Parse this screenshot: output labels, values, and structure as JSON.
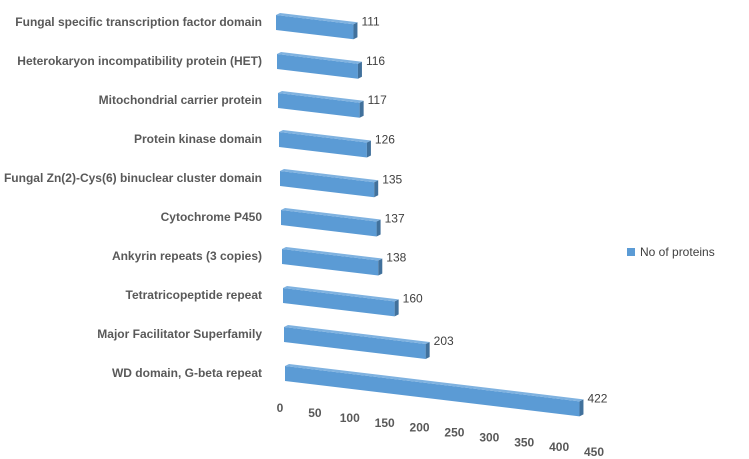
{
  "chart_data": {
    "type": "bar3d",
    "categories": [
      "Fungal specific transcription factor domain",
      "Heterokaryon incompatibility protein (HET)",
      "Mitochondrial carrier protein",
      "Protein kinase domain",
      "Fungal Zn(2)-Cys(6) binuclear cluster domain",
      "Cytochrome P450",
      "Ankyrin repeats (3 copies)",
      "Tetratricopeptide repeat",
      "Major Facilitator Superfamily",
      "WD domain, G-beta repeat"
    ],
    "series": [
      {
        "name": "No of proteins",
        "color": "#5b9bd5",
        "values": [
          111,
          116,
          117,
          126,
          135,
          137,
          138,
          160,
          203,
          422
        ]
      }
    ],
    "xlim": [
      0,
      450
    ],
    "xticks": [
      0,
      50,
      100,
      150,
      200,
      250,
      300,
      350,
      400,
      450
    ],
    "legend": "right"
  }
}
